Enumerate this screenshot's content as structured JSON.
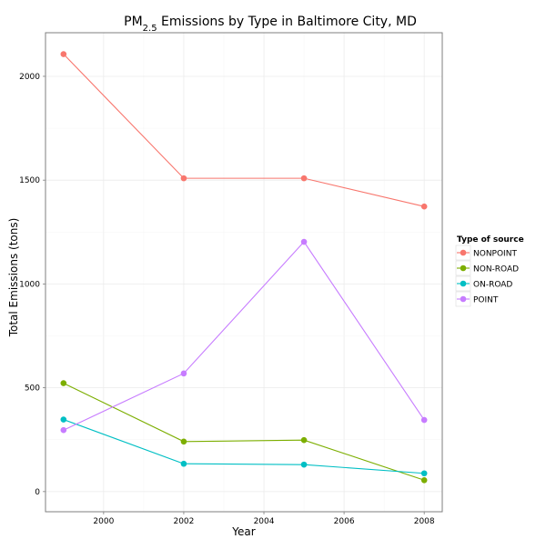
{
  "chart_data": {
    "type": "line",
    "title": {
      "main": "PM",
      "sub": "2.5",
      "rest": " Emissions by Type in Baltimore City, MD"
    },
    "xlabel": "Year",
    "ylabel": "Total Emissions (tons)",
    "x": [
      1999,
      2002,
      2005,
      2008
    ],
    "xlim": [
      1998.55,
      2008.45
    ],
    "ylim": [
      -97,
      2210
    ],
    "xticks": [
      2000,
      2002,
      2004,
      2006,
      2008
    ],
    "yticks": [
      0,
      500,
      1000,
      1500,
      2000
    ],
    "grid": true,
    "legend": {
      "title": "Type of source",
      "position": "right"
    },
    "series": [
      {
        "name": "NONPOINT",
        "color": "#F8766D",
        "values": [
          2107,
          1509,
          1509,
          1373
        ]
      },
      {
        "name": "NON-ROAD",
        "color": "#7CAE00",
        "values": [
          522,
          241,
          248,
          55
        ]
      },
      {
        "name": "ON-ROAD",
        "color": "#00BFC4",
        "values": [
          347,
          134,
          130,
          88
        ]
      },
      {
        "name": "POINT",
        "color": "#C77CFF",
        "values": [
          296,
          569,
          1203,
          345
        ]
      }
    ]
  }
}
